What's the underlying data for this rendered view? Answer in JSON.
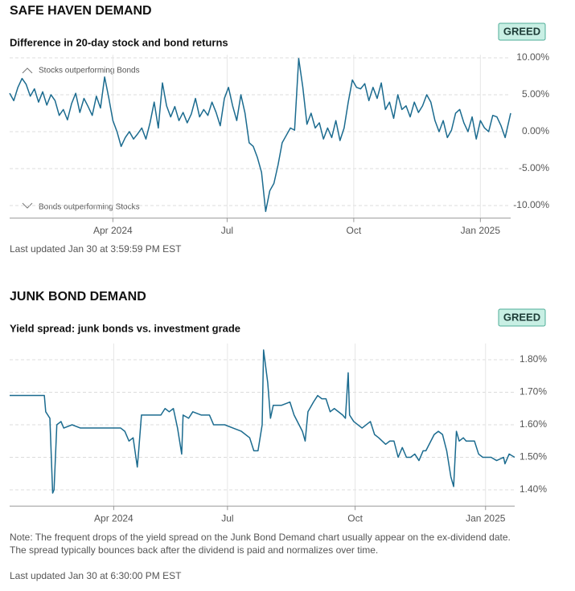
{
  "chart_data": [
    {
      "type": "line",
      "heading": "SAFE HAVEN DEMAND",
      "badge": "GREED",
      "title": "Difference in 20-day stock and bond returns",
      "annotations": [
        "Stocks outperforming Bonds",
        "Bonds outperforming Stocks"
      ],
      "footer": "Last updated Jan 30 at 3:59:59 PM EST",
      "color": "#1b6b8f",
      "grid": true,
      "xlim": [
        0,
        364
      ],
      "xticks": [
        {
          "value": 75,
          "label": "Apr 2024"
        },
        {
          "value": 158,
          "label": "Jul"
        },
        {
          "value": 250,
          "label": "Oct"
        },
        {
          "value": 342,
          "label": "Jan 2025"
        }
      ],
      "ylim": [
        -11.7,
        10.4
      ],
      "yticks": [
        {
          "value": 10,
          "label": "10.00%"
        },
        {
          "value": 5,
          "label": "5.00%"
        },
        {
          "value": 0,
          "label": "0.00%"
        },
        {
          "value": -5,
          "label": "-5.00%"
        },
        {
          "value": -10,
          "label": "-10.00%"
        }
      ],
      "x": [
        0,
        3,
        6,
        9,
        12,
        15,
        18,
        21,
        24,
        27,
        30,
        33,
        36,
        39,
        42,
        45,
        48,
        51,
        54,
        57,
        60,
        63,
        66,
        69,
        72,
        75,
        78,
        81,
        84,
        87,
        90,
        93,
        96,
        99,
        102,
        105,
        108,
        111,
        114,
        117,
        120,
        123,
        126,
        129,
        132,
        135,
        138,
        141,
        144,
        147,
        150,
        153,
        156,
        159,
        162,
        165,
        168,
        171,
        174,
        177,
        180,
        183,
        186,
        189,
        192,
        195,
        198,
        201,
        204,
        207,
        210,
        213,
        216,
        219,
        222,
        225,
        228,
        231,
        234,
        237,
        240,
        243,
        246,
        249,
        252,
        255,
        258,
        261,
        264,
        267,
        270,
        273,
        276,
        279,
        282,
        285,
        288,
        291,
        294,
        297,
        300,
        303,
        306,
        309,
        312,
        315,
        318,
        321,
        324,
        327,
        330,
        333,
        336,
        339,
        342,
        345,
        348,
        351,
        354,
        357,
        360,
        364
      ],
      "values": [
        5.2,
        4.2,
        6.0,
        7.2,
        6.4,
        4.8,
        5.8,
        4.0,
        5.4,
        3.6,
        5.0,
        4.2,
        2.2,
        3.0,
        1.6,
        3.8,
        5.2,
        2.6,
        4.5,
        3.4,
        2.2,
        4.8,
        3.2,
        7.4,
        4.6,
        1.5,
        0.0,
        -2.0,
        -0.8,
        0.0,
        -1.0,
        -0.3,
        0.5,
        -1.0,
        1.2,
        4.0,
        0.5,
        6.6,
        3.5,
        2.0,
        3.4,
        1.5,
        2.6,
        1.2,
        2.4,
        4.5,
        2.0,
        3.0,
        2.2,
        4.0,
        2.6,
        0.8,
        4.5,
        6.0,
        3.5,
        1.5,
        5.0,
        2.5,
        -1.5,
        -2.0,
        -3.5,
        -5.5,
        -10.8,
        -8.0,
        -7.0,
        -4.5,
        -1.5,
        -0.5,
        0.5,
        0.2,
        9.9,
        6.0,
        1.0,
        2.5,
        0.5,
        1.2,
        -1.0,
        0.5,
        -0.8,
        1.5,
        -1.2,
        0.5,
        4.0,
        7.0,
        6.0,
        5.8,
        6.5,
        4.2,
        6.0,
        4.5,
        6.6,
        3.0,
        4.0,
        1.8,
        5.0,
        3.0,
        3.5,
        2.0,
        4.0,
        2.6,
        3.5,
        5.0,
        4.0,
        1.5,
        0.0,
        1.5,
        -0.8,
        0.2,
        2.5,
        3.0,
        1.2,
        0.0,
        2.0,
        -1.0,
        1.5,
        0.5,
        0.0,
        2.2,
        2.0,
        0.8,
        -0.8,
        2.5
      ]
    },
    {
      "type": "line",
      "heading": "JUNK BOND DEMAND",
      "badge": "GREED",
      "title": "Yield spread: junk bonds vs. investment grade",
      "note": [
        "Note: The frequent drops of the yield spread on the Junk Bond Demand chart usually appear on the ex-dividend date.",
        "The spread typically bounces back after the dividend is paid and normalizes over time."
      ],
      "footer": "Last updated Jan 30 at 6:30:00 PM EST",
      "color": "#1b6b8f",
      "grid": true,
      "xlim": [
        0,
        364
      ],
      "xticks": [
        {
          "value": 75,
          "label": "Apr 2024"
        },
        {
          "value": 157,
          "label": "Jul"
        },
        {
          "value": 249,
          "label": "Oct"
        },
        {
          "value": 343,
          "label": "Jan 2025"
        }
      ],
      "ylim": [
        1.35,
        1.85
      ],
      "yticks": [
        {
          "value": 1.8,
          "label": "1.80%"
        },
        {
          "value": 1.7,
          "label": "1.70%"
        },
        {
          "value": 1.6,
          "label": "1.60%"
        },
        {
          "value": 1.5,
          "label": "1.50%"
        },
        {
          "value": 1.4,
          "label": "1.40%"
        }
      ],
      "x": [
        0,
        25,
        26,
        29,
        31,
        32,
        34,
        37,
        39,
        45,
        51,
        57,
        80,
        83,
        86,
        89,
        92,
        93,
        95,
        97,
        109,
        112,
        115,
        118,
        121,
        124,
        125,
        129,
        132,
        138,
        144,
        147,
        155,
        161,
        167,
        173,
        176,
        179,
        182,
        183,
        186,
        188,
        190,
        196,
        202,
        205,
        211,
        213,
        215,
        219,
        222,
        225,
        228,
        231,
        234,
        240,
        242,
        244,
        245,
        248,
        254,
        260,
        263,
        266,
        271,
        274,
        277,
        280,
        283,
        286,
        289,
        292,
        295,
        298,
        300,
        306,
        309,
        312,
        315,
        318,
        320,
        322,
        324,
        327,
        329,
        335,
        338,
        341,
        347,
        351,
        356,
        357,
        360,
        364
      ],
      "values": [
        1.69,
        1.69,
        1.64,
        1.62,
        1.39,
        1.4,
        1.6,
        1.61,
        1.59,
        1.6,
        1.59,
        1.59,
        1.59,
        1.58,
        1.55,
        1.56,
        1.47,
        1.52,
        1.63,
        1.63,
        1.63,
        1.65,
        1.64,
        1.65,
        1.59,
        1.51,
        1.63,
        1.62,
        1.64,
        1.63,
        1.63,
        1.6,
        1.6,
        1.59,
        1.58,
        1.56,
        1.52,
        1.52,
        1.6,
        1.83,
        1.73,
        1.62,
        1.66,
        1.66,
        1.67,
        1.63,
        1.58,
        1.55,
        1.64,
        1.67,
        1.69,
        1.68,
        1.68,
        1.64,
        1.65,
        1.63,
        1.62,
        1.76,
        1.63,
        1.61,
        1.59,
        1.61,
        1.57,
        1.56,
        1.54,
        1.55,
        1.55,
        1.5,
        1.53,
        1.5,
        1.5,
        1.51,
        1.49,
        1.52,
        1.52,
        1.57,
        1.58,
        1.57,
        1.52,
        1.44,
        1.41,
        1.58,
        1.55,
        1.56,
        1.55,
        1.55,
        1.51,
        1.5,
        1.5,
        1.49,
        1.5,
        1.48,
        1.51,
        1.5
      ]
    }
  ]
}
